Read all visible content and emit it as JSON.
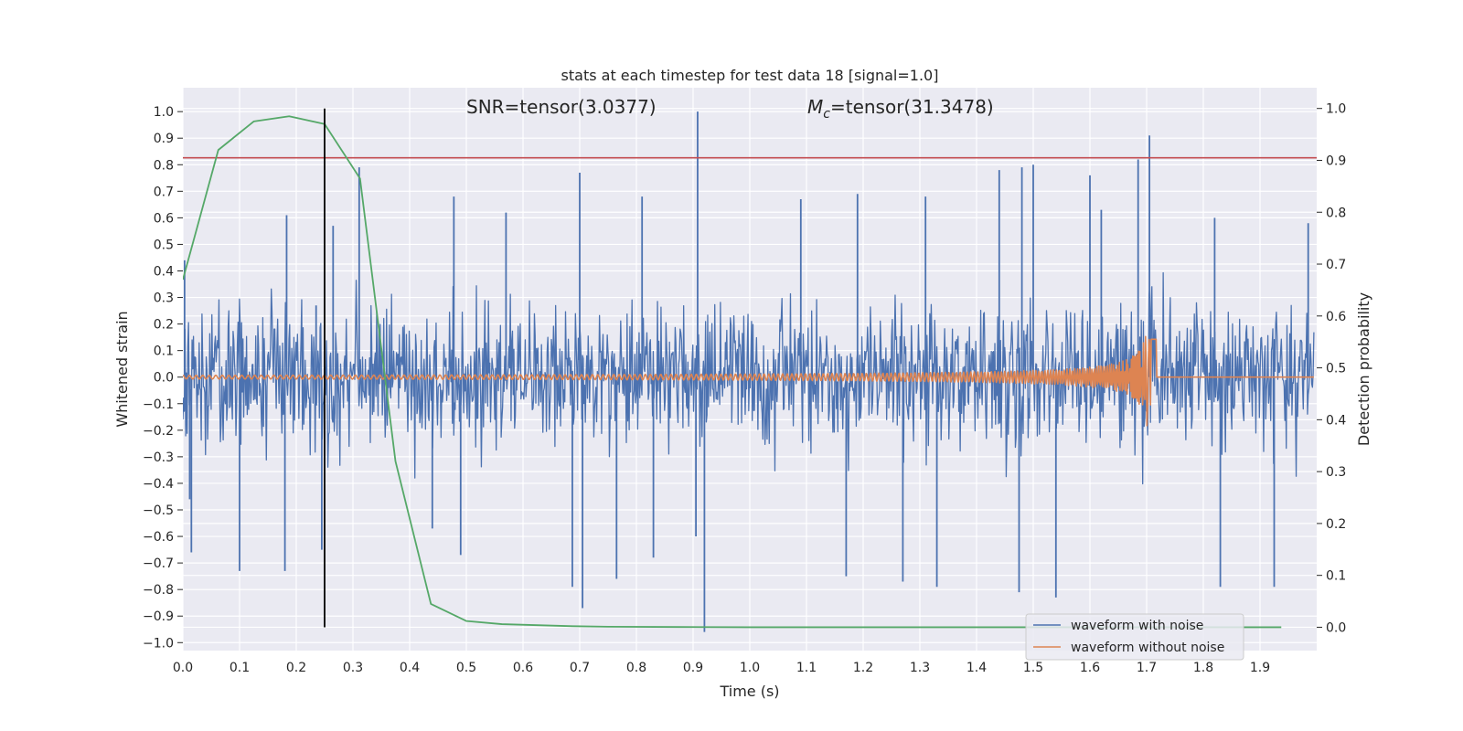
{
  "chart_data": {
    "type": "line",
    "title": "stats at each timestep for test data 18 [signal=1.0]",
    "xlabel": "Time (s)",
    "ylabel_left": "Whitened strain",
    "ylabel_right": "Detection probability",
    "xlim": [
      0.0,
      2.0
    ],
    "ylim_left": [
      -1.03,
      1.09
    ],
    "ylim_right": [
      -0.045,
      1.04
    ],
    "xticks": [
      0.0,
      0.1,
      0.2,
      0.3,
      0.4,
      0.5,
      0.6,
      0.7,
      0.8,
      0.9,
      1.0,
      1.1,
      1.2,
      1.3,
      1.4,
      1.5,
      1.6,
      1.7,
      1.8,
      1.9
    ],
    "xtick_labels": [
      "0.0",
      "0.1",
      "0.2",
      "0.3",
      "0.4",
      "0.5",
      "0.6",
      "0.7",
      "0.8",
      "0.9",
      "1.0",
      "1.1",
      "1.2",
      "1.3",
      "1.4",
      "1.5",
      "1.6",
      "1.7",
      "1.8",
      "1.9"
    ],
    "yticks_left": [
      1.0,
      0.9,
      0.8,
      0.7,
      0.6,
      0.5,
      0.4,
      0.3,
      0.2,
      0.1,
      0.0,
      -0.1,
      -0.2,
      -0.3,
      -0.4,
      -0.5,
      -0.6,
      -0.7,
      -0.8,
      -0.9,
      -1.0
    ],
    "ytick_labels_left": [
      "1.0",
      "0.9",
      "0.8",
      "0.7",
      "0.6",
      "0.5",
      "0.4",
      "0.3",
      "0.2",
      "0.1",
      "0.0",
      "−0.1",
      "−0.2",
      "−0.3",
      "−0.4",
      "−0.5",
      "−0.6",
      "−0.7",
      "−0.8",
      "−0.9",
      "−1.0"
    ],
    "yticks_right": [
      1.0,
      0.9,
      0.8,
      0.7,
      0.6,
      0.5,
      0.4,
      0.3,
      0.2,
      0.1,
      0.0
    ],
    "ytick_labels_right": [
      "1.0",
      "0.9",
      "0.8",
      "0.7",
      "0.6",
      "0.5",
      "0.4",
      "0.3",
      "0.2",
      "0.1",
      "0.0"
    ],
    "annotations": {
      "snr": "SNR=tensor(3.0377)",
      "mc_symbol": "M",
      "mc_subscript": "c",
      "mc_value": "=tensor(31.3478)"
    },
    "legend": {
      "placement": "lower-right",
      "entries": [
        "waveform with noise",
        "waveform without noise"
      ]
    },
    "series": [
      {
        "name": "waveform with noise",
        "axis": "left",
        "color": "#4c72b0",
        "sampled": true,
        "x_range": [
          0.0,
          1.995
        ],
        "spikes": [
          {
            "x": 0.003,
            "y": 0.44
          },
          {
            "x": 0.012,
            "y": -0.46
          },
          {
            "x": 0.015,
            "y": -0.66
          },
          {
            "x": 0.1,
            "y": -0.73
          },
          {
            "x": 0.18,
            "y": -0.73
          },
          {
            "x": 0.183,
            "y": 0.61
          },
          {
            "x": 0.235,
            "y": 0.27
          },
          {
            "x": 0.245,
            "y": -0.65
          },
          {
            "x": 0.265,
            "y": 0.57
          },
          {
            "x": 0.311,
            "y": 0.79
          },
          {
            "x": 0.44,
            "y": -0.57
          },
          {
            "x": 0.478,
            "y": 0.68
          },
          {
            "x": 0.49,
            "y": -0.67
          },
          {
            "x": 0.57,
            "y": 0.62
          },
          {
            "x": 0.7,
            "y": 0.77
          },
          {
            "x": 0.687,
            "y": -0.79
          },
          {
            "x": 0.705,
            "y": -0.87
          },
          {
            "x": 0.765,
            "y": -0.76
          },
          {
            "x": 0.81,
            "y": 0.68
          },
          {
            "x": 0.83,
            "y": -0.68
          },
          {
            "x": 0.905,
            "y": -0.6
          },
          {
            "x": 0.908,
            "y": 1.0
          },
          {
            "x": 0.92,
            "y": -0.96
          },
          {
            "x": 1.09,
            "y": 0.67
          },
          {
            "x": 1.17,
            "y": -0.75
          },
          {
            "x": 1.19,
            "y": 0.69
          },
          {
            "x": 1.27,
            "y": -0.77
          },
          {
            "x": 1.31,
            "y": 0.68
          },
          {
            "x": 1.33,
            "y": -0.79
          },
          {
            "x": 1.44,
            "y": 0.78
          },
          {
            "x": 1.48,
            "y": 0.79
          },
          {
            "x": 1.475,
            "y": -0.81
          },
          {
            "x": 1.5,
            "y": 0.8
          },
          {
            "x": 1.54,
            "y": -0.83
          },
          {
            "x": 1.6,
            "y": 0.76
          },
          {
            "x": 1.62,
            "y": 0.63
          },
          {
            "x": 1.685,
            "y": 0.82
          },
          {
            "x": 1.705,
            "y": 0.91
          },
          {
            "x": 1.82,
            "y": 0.6
          },
          {
            "x": 1.83,
            "y": -0.79
          },
          {
            "x": 1.925,
            "y": -0.79
          },
          {
            "x": 1.985,
            "y": 0.58
          }
        ]
      },
      {
        "name": "waveform without noise",
        "axis": "left",
        "color": "#dd8452",
        "sampled": true,
        "x_range": [
          0.0,
          1.995
        ],
        "merger_time": 1.705,
        "peak_amplitude": 0.2
      },
      {
        "axis": "right",
        "color": "#55a868",
        "x": [
          0.0,
          0.0625,
          0.125,
          0.1875,
          0.25,
          0.3125,
          0.375,
          0.4375,
          0.5,
          0.5625,
          0.625,
          0.6875,
          0.75,
          0.875,
          1.0,
          1.25,
          1.5,
          1.75,
          1.9375
        ],
        "values": [
          0.67,
          0.92,
          0.975,
          0.985,
          0.97,
          0.865,
          0.32,
          0.045,
          0.012,
          0.006,
          0.004,
          0.002,
          0.001,
          0.0005,
          0.0,
          0.0,
          0.0,
          0.0,
          0.0
        ]
      }
    ],
    "threshold_line": {
      "axis": "right",
      "y": 0.905,
      "color": "#c44e52"
    },
    "vertical_line": {
      "x": 0.25,
      "y_from": 0.0,
      "y_to": 1.0,
      "axis": "right",
      "color": "#000000"
    }
  }
}
